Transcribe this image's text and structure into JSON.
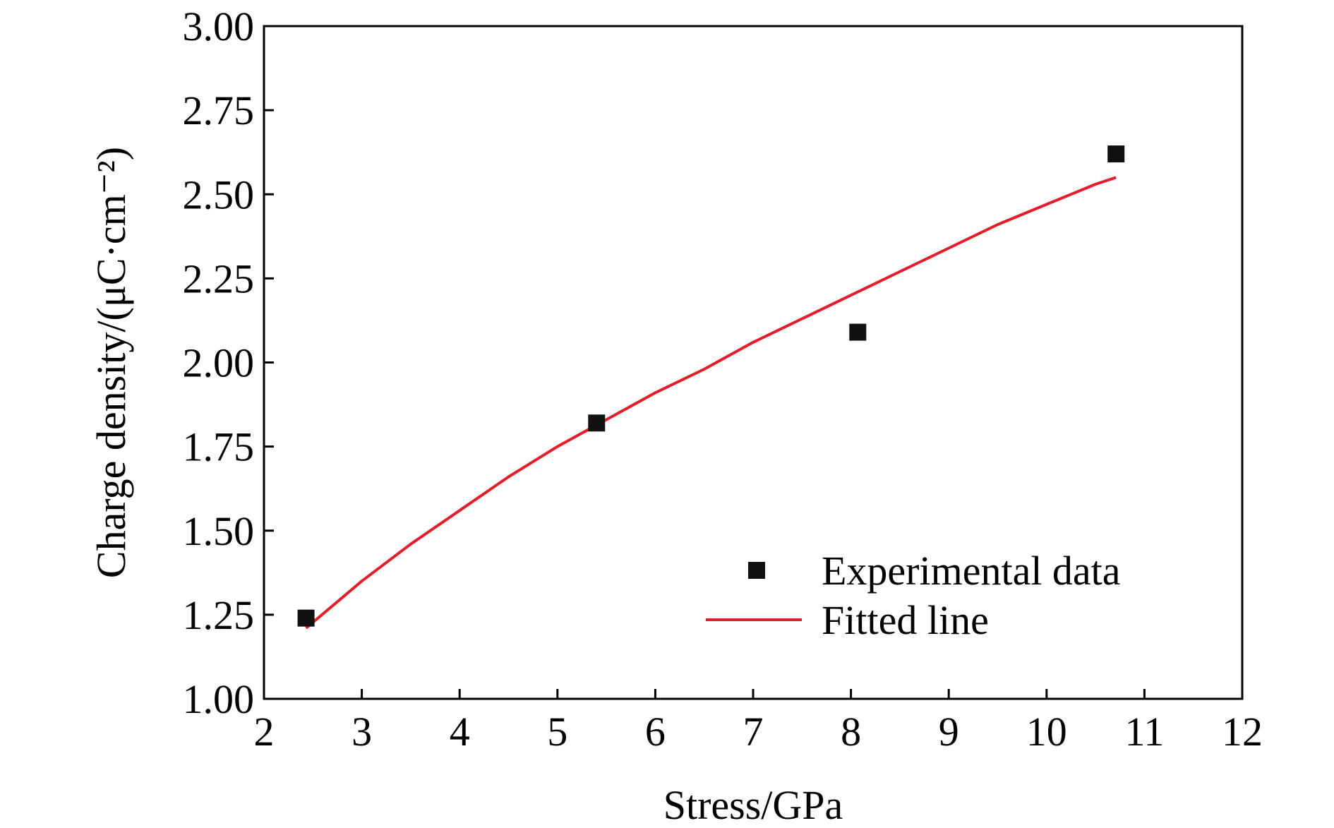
{
  "chart_data": {
    "type": "scatter",
    "title": "",
    "xlabel": "Stress/GPa",
    "ylabel": "Charge density/(μC·cm⁻²)",
    "xlim": [
      2,
      12
    ],
    "ylim": [
      1.0,
      3.0
    ],
    "x_ticks": [
      "2",
      "3",
      "4",
      "5",
      "6",
      "7",
      "8",
      "9",
      "10",
      "11",
      "12"
    ],
    "y_ticks": [
      "1.00",
      "1.25",
      "1.50",
      "1.75",
      "2.00",
      "2.25",
      "2.50",
      "2.75",
      "3.00"
    ],
    "grid": false,
    "legend_position": "lower-right",
    "series": [
      {
        "name": "Experimental data",
        "kind": "scatter",
        "marker": "square",
        "color": "#111111",
        "x": [
          2.43,
          5.4,
          8.07,
          10.71
        ],
        "y": [
          1.24,
          1.82,
          2.09,
          2.62
        ]
      },
      {
        "name": "Fitted line",
        "kind": "line",
        "color": "#e31e2a",
        "x": [
          2.43,
          3.0,
          3.5,
          4.0,
          4.5,
          5.0,
          5.5,
          6.0,
          6.5,
          7.0,
          7.5,
          8.0,
          8.5,
          9.0,
          9.5,
          10.0,
          10.5,
          10.71
        ],
        "y": [
          1.21,
          1.35,
          1.46,
          1.56,
          1.66,
          1.75,
          1.83,
          1.91,
          1.98,
          2.06,
          2.13,
          2.2,
          2.27,
          2.34,
          2.41,
          2.47,
          2.53,
          2.55
        ]
      }
    ]
  }
}
